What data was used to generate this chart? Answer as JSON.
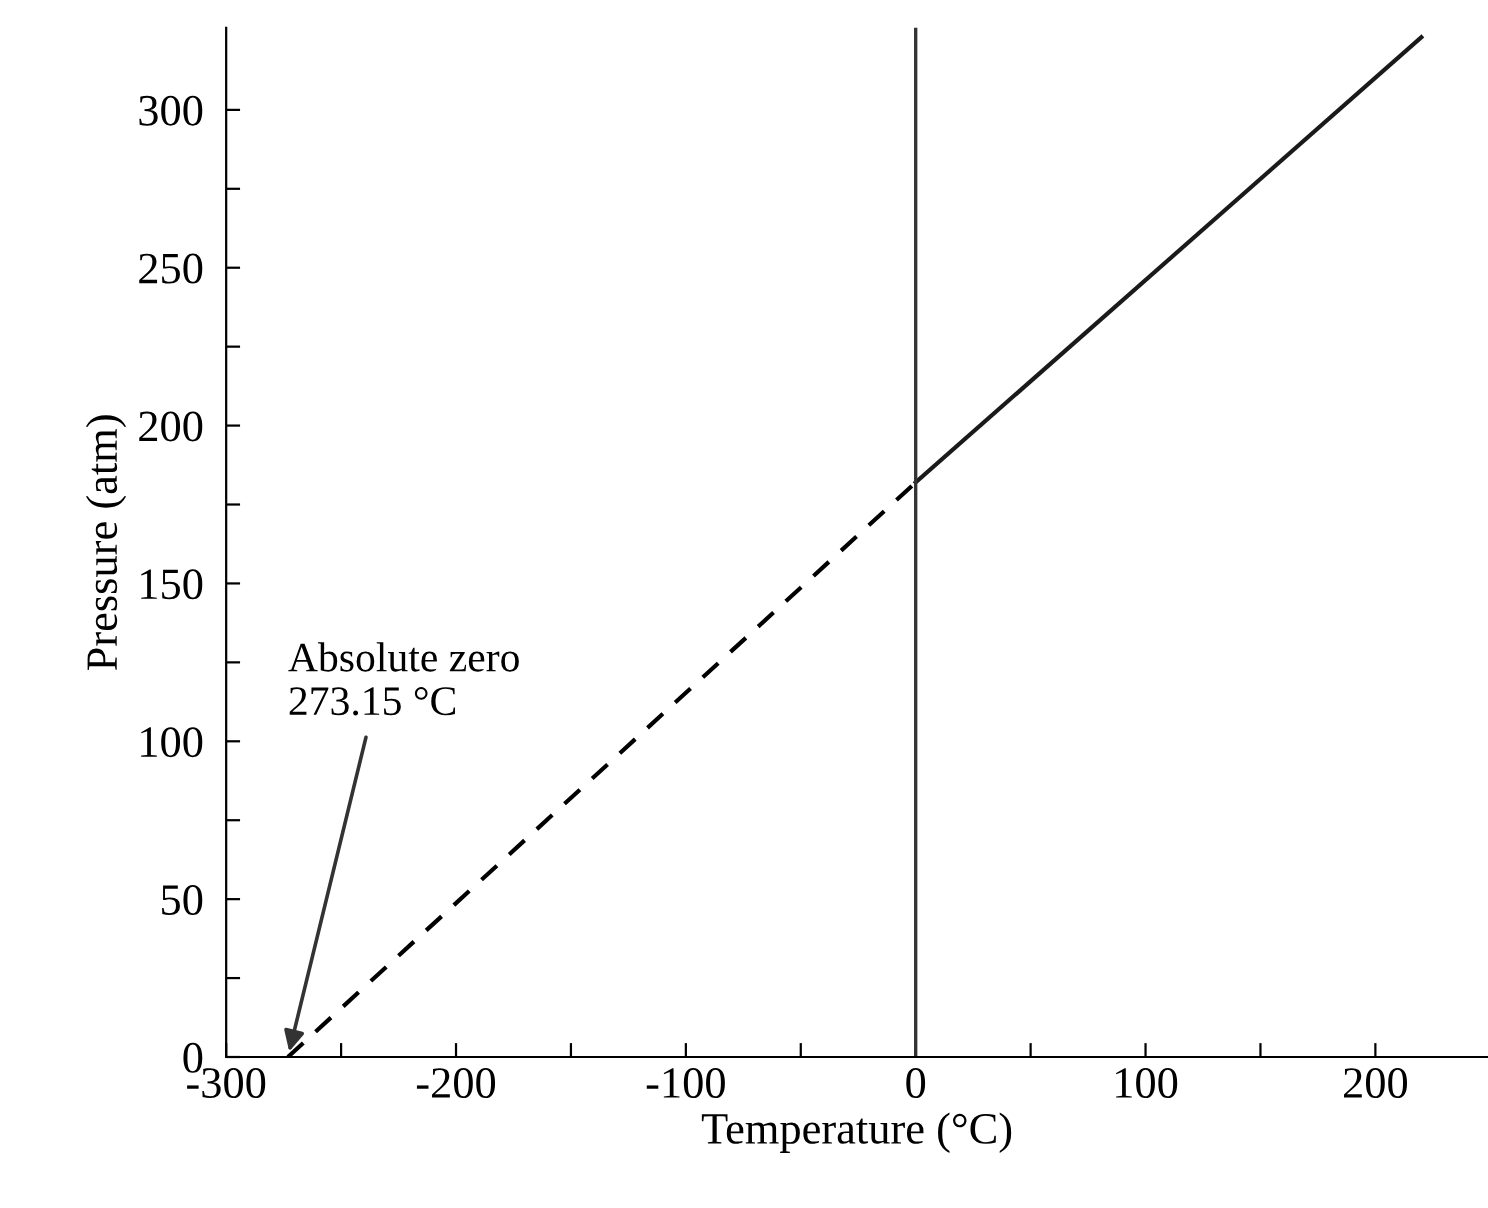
{
  "chart_data": {
    "type": "line",
    "xlabel": "Temperature (°C)",
    "ylabel": "Pressure (atm)",
    "series": [
      {
        "x": [
          -273.15,
          0
        ],
        "values": [
          0,
          182
        ],
        "color": "#000000",
        "line_style": "dashed"
      },
      {
        "x": [
          0,
          220
        ],
        "values": [
          182,
          323
        ],
        "color": "#1a1a1a",
        "line_style": "solid"
      }
    ],
    "ref_lines": [
      {
        "axis": "x",
        "value": 0,
        "color": "#333333",
        "line_style": "solid"
      }
    ],
    "annotations": [
      {
        "text": "Absolute zero\n273.15 °C",
        "x": -273.15,
        "y": 0
      }
    ],
    "xlim": [
      -300,
      249
    ],
    "ylim": [
      0,
      326
    ],
    "xticks": [
      -300,
      {
        "value": -250,
        "label": null
      },
      -200,
      {
        "value": -150,
        "label": null
      },
      -100,
      {
        "value": -50,
        "label": null
      },
      0,
      {
        "value": 50,
        "label": null
      },
      100,
      {
        "value": 150,
        "label": null
      },
      200
    ],
    "yticks": [
      0,
      {
        "value": 25,
        "label": null
      },
      50,
      {
        "value": 75,
        "label": null
      },
      100,
      {
        "value": 125,
        "label": null
      },
      150,
      {
        "value": 175,
        "label": null
      },
      200,
      {
        "value": 225,
        "label": null
      },
      250,
      {
        "value": 275,
        "label": null
      },
      300
    ],
    "grid": false,
    "legend": false,
    "marker": "none"
  }
}
